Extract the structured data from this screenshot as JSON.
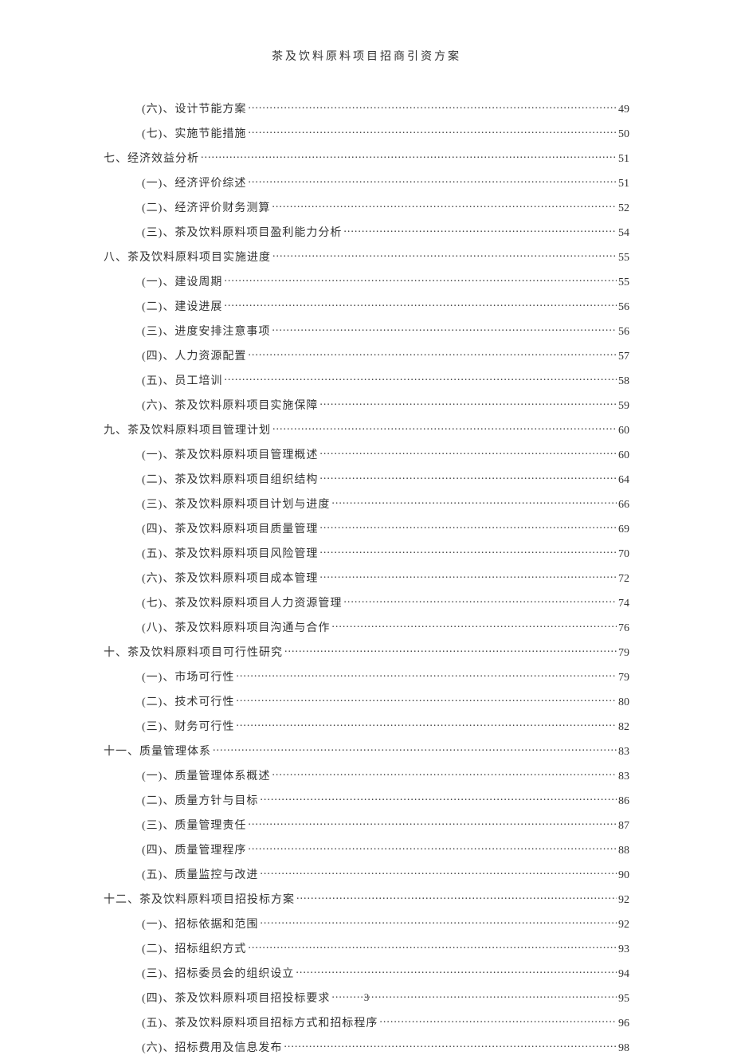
{
  "header_title": "茶及饮料原料项目招商引资方案",
  "page_number": "3",
  "toc_entries": [
    {
      "level": 2,
      "label": "(六)、设计节能方案",
      "page": "49"
    },
    {
      "level": 2,
      "label": "(七)、实施节能措施",
      "page": "50"
    },
    {
      "level": 1,
      "label": "七、经济效益分析 ",
      "page": "51"
    },
    {
      "level": 2,
      "label": "(一)、经济评价综述",
      "page": "51"
    },
    {
      "level": 2,
      "label": "(二)、经济评价财务测算",
      "page": "52"
    },
    {
      "level": 2,
      "label": "(三)、茶及饮料原料项目盈利能力分析 ",
      "page": "54"
    },
    {
      "level": 1,
      "label": "八、茶及饮料原料项目实施进度 ",
      "page": "55"
    },
    {
      "level": 2,
      "label": "(一)、建设周期 ",
      "page": "55"
    },
    {
      "level": 2,
      "label": "(二)、建设进展 ",
      "page": "56"
    },
    {
      "level": 2,
      "label": "(三)、进度安排注意事项",
      "page": "56"
    },
    {
      "level": 2,
      "label": "(四)、人力资源配置",
      "page": "57"
    },
    {
      "level": 2,
      "label": "(五)、员工培训 ",
      "page": "58"
    },
    {
      "level": 2,
      "label": "(六)、茶及饮料原料项目实施保障 ",
      "page": "59"
    },
    {
      "level": 1,
      "label": "九、茶及饮料原料项目管理计划 ",
      "page": "60"
    },
    {
      "level": 2,
      "label": "(一)、茶及饮料原料项目管理概述 ",
      "page": "60"
    },
    {
      "level": 2,
      "label": "(二)、茶及饮料原料项目组织结构 ",
      "page": "64"
    },
    {
      "level": 2,
      "label": "(三)、茶及饮料原料项目计划与进度 ",
      "page": "66"
    },
    {
      "level": 2,
      "label": "(四)、茶及饮料原料项目质量管理 ",
      "page": "69"
    },
    {
      "level": 2,
      "label": "(五)、茶及饮料原料项目风险管理 ",
      "page": "70"
    },
    {
      "level": 2,
      "label": "(六)、茶及饮料原料项目成本管理 ",
      "page": "72"
    },
    {
      "level": 2,
      "label": "(七)、茶及饮料原料项目人力资源管理 ",
      "page": "74"
    },
    {
      "level": 2,
      "label": "(八)、茶及饮料原料项目沟通与合作 ",
      "page": "76"
    },
    {
      "level": 1,
      "label": "十、茶及饮料原料项目可行性研究 ",
      "page": "79"
    },
    {
      "level": 2,
      "label": "(一)、市场可行性",
      "page": "79"
    },
    {
      "level": 2,
      "label": "(二)、技术可行性",
      "page": "80"
    },
    {
      "level": 2,
      "label": "(三)、财务可行性",
      "page": "82"
    },
    {
      "level": 1,
      "label": "十一、质量管理体系 ",
      "page": "83"
    },
    {
      "level": 2,
      "label": "(一)、质量管理体系概述",
      "page": "83"
    },
    {
      "level": 2,
      "label": "(二)、质量方针与目标",
      "page": "86"
    },
    {
      "level": 2,
      "label": "(三)、质量管理责任",
      "page": "87"
    },
    {
      "level": 2,
      "label": "(四)、质量管理程序",
      "page": "88"
    },
    {
      "level": 2,
      "label": "(五)、质量监控与改进",
      "page": "90"
    },
    {
      "level": 1,
      "label": "十二、茶及饮料原料项目招投标方案 ",
      "page": "92"
    },
    {
      "level": 2,
      "label": "(一)、招标依据和范围",
      "page": "92"
    },
    {
      "level": 2,
      "label": "(二)、招标组织方式",
      "page": "93"
    },
    {
      "level": 2,
      "label": "(三)、招标委员会的组织设立 ",
      "page": "94"
    },
    {
      "level": 2,
      "label": "(四)、茶及饮料原料项目招投标要求 ",
      "page": "95"
    },
    {
      "level": 2,
      "label": "(五)、茶及饮料原料项目招标方式和招标程序 ",
      "page": "96"
    },
    {
      "level": 2,
      "label": "(六)、招标费用及信息发布 ",
      "page": "98"
    }
  ]
}
